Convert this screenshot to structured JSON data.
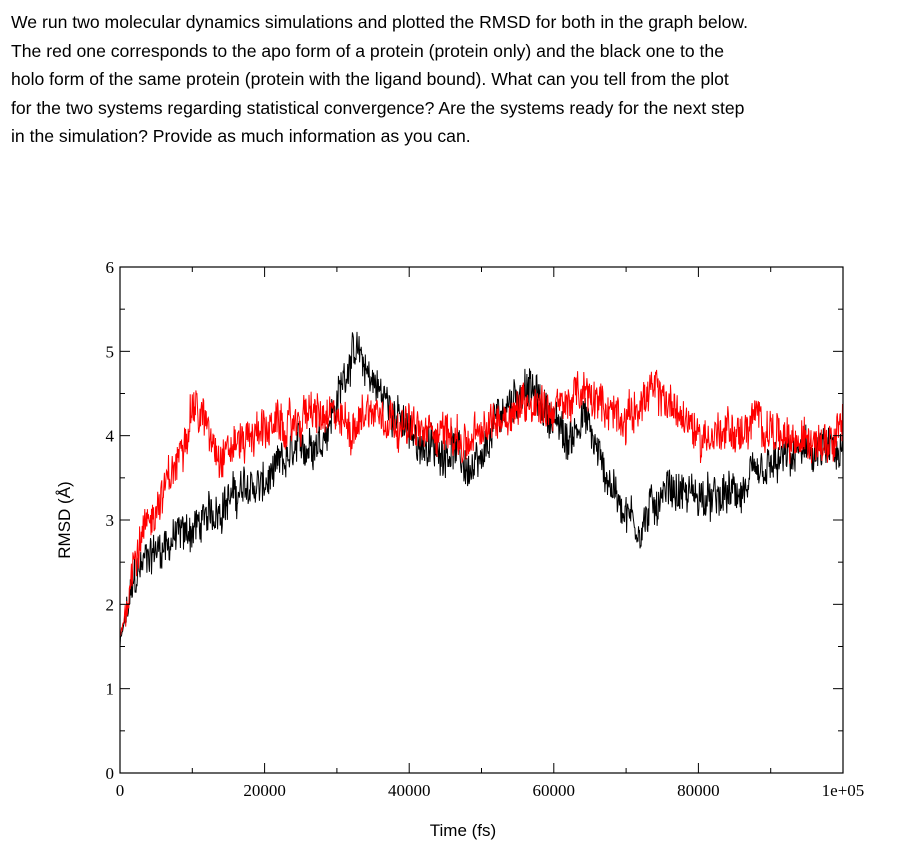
{
  "question": {
    "lines": [
      "We run two molecular dynamics simulations and plotted the RMSD for both in the graph below.",
      "The red one corresponds to the apo form of a protein (protein only) and the black one to the",
      "holo form of the same protein (protein with the ligand bound). What can you tell from the plot",
      "for the two systems regarding statistical convergence? Are the systems ready for the next step",
      "in the simulation? Provide as much information as you can."
    ]
  },
  "chart_data": {
    "type": "line",
    "title": "",
    "xlabel": "Time (fs)",
    "ylabel": "RMSD (Å)",
    "xlim": [
      0,
      100000
    ],
    "ylim": [
      0,
      6
    ],
    "grid": false,
    "x_ticks": [
      0,
      20000,
      40000,
      60000,
      80000,
      100000
    ],
    "x_tick_labels": [
      "0",
      "20000",
      "40000",
      "60000",
      "80000",
      "1e+05"
    ],
    "y_ticks": [
      0,
      1,
      2,
      3,
      4,
      5,
      6
    ],
    "y_tick_labels": [
      "0",
      "1",
      "2",
      "3",
      "4",
      "5",
      "6"
    ],
    "x": [
      0,
      2000,
      4000,
      6000,
      8000,
      10000,
      12000,
      14000,
      16000,
      18000,
      20000,
      22000,
      24000,
      26000,
      28000,
      30000,
      32000,
      34000,
      36000,
      38000,
      40000,
      42000,
      44000,
      46000,
      48000,
      50000,
      52000,
      54000,
      56000,
      58000,
      60000,
      62000,
      64000,
      66000,
      68000,
      70000,
      72000,
      74000,
      76000,
      78000,
      80000,
      82000,
      84000,
      86000,
      88000,
      90000,
      92000,
      94000,
      96000,
      98000,
      100000
    ],
    "series": [
      {
        "name": "holo (protein + ligand)",
        "color": "#000000",
        "values": [
          1.5,
          2.3,
          2.6,
          2.7,
          2.8,
          2.9,
          3.0,
          3.2,
          3.3,
          3.4,
          3.4,
          3.6,
          3.8,
          3.9,
          4.0,
          4.4,
          5.0,
          4.8,
          4.5,
          4.3,
          4.0,
          3.9,
          3.8,
          3.9,
          3.6,
          3.6,
          4.2,
          4.4,
          4.6,
          4.4,
          4.2,
          3.9,
          4.3,
          3.8,
          3.4,
          3.1,
          2.9,
          3.2,
          3.4,
          3.3,
          3.3,
          3.2,
          3.3,
          3.3,
          3.5,
          3.6,
          3.7,
          3.8,
          3.8,
          3.8,
          3.7
        ]
      },
      {
        "name": "apo (protein only)",
        "color": "#ff0000",
        "values": [
          1.6,
          2.6,
          3.0,
          3.3,
          3.7,
          4.4,
          4.1,
          3.8,
          3.9,
          4.0,
          4.1,
          4.1,
          4.1,
          4.3,
          4.2,
          4.2,
          4.1,
          4.3,
          4.3,
          4.2,
          4.1,
          4.0,
          4.1,
          4.0,
          3.9,
          4.0,
          4.2,
          4.3,
          4.4,
          4.4,
          4.3,
          4.4,
          4.5,
          4.4,
          4.3,
          4.2,
          4.4,
          4.5,
          4.4,
          4.2,
          4.0,
          4.0,
          4.1,
          4.0,
          4.2,
          4.1,
          3.9,
          3.9,
          4.0,
          4.0,
          4.2
        ]
      }
    ]
  }
}
